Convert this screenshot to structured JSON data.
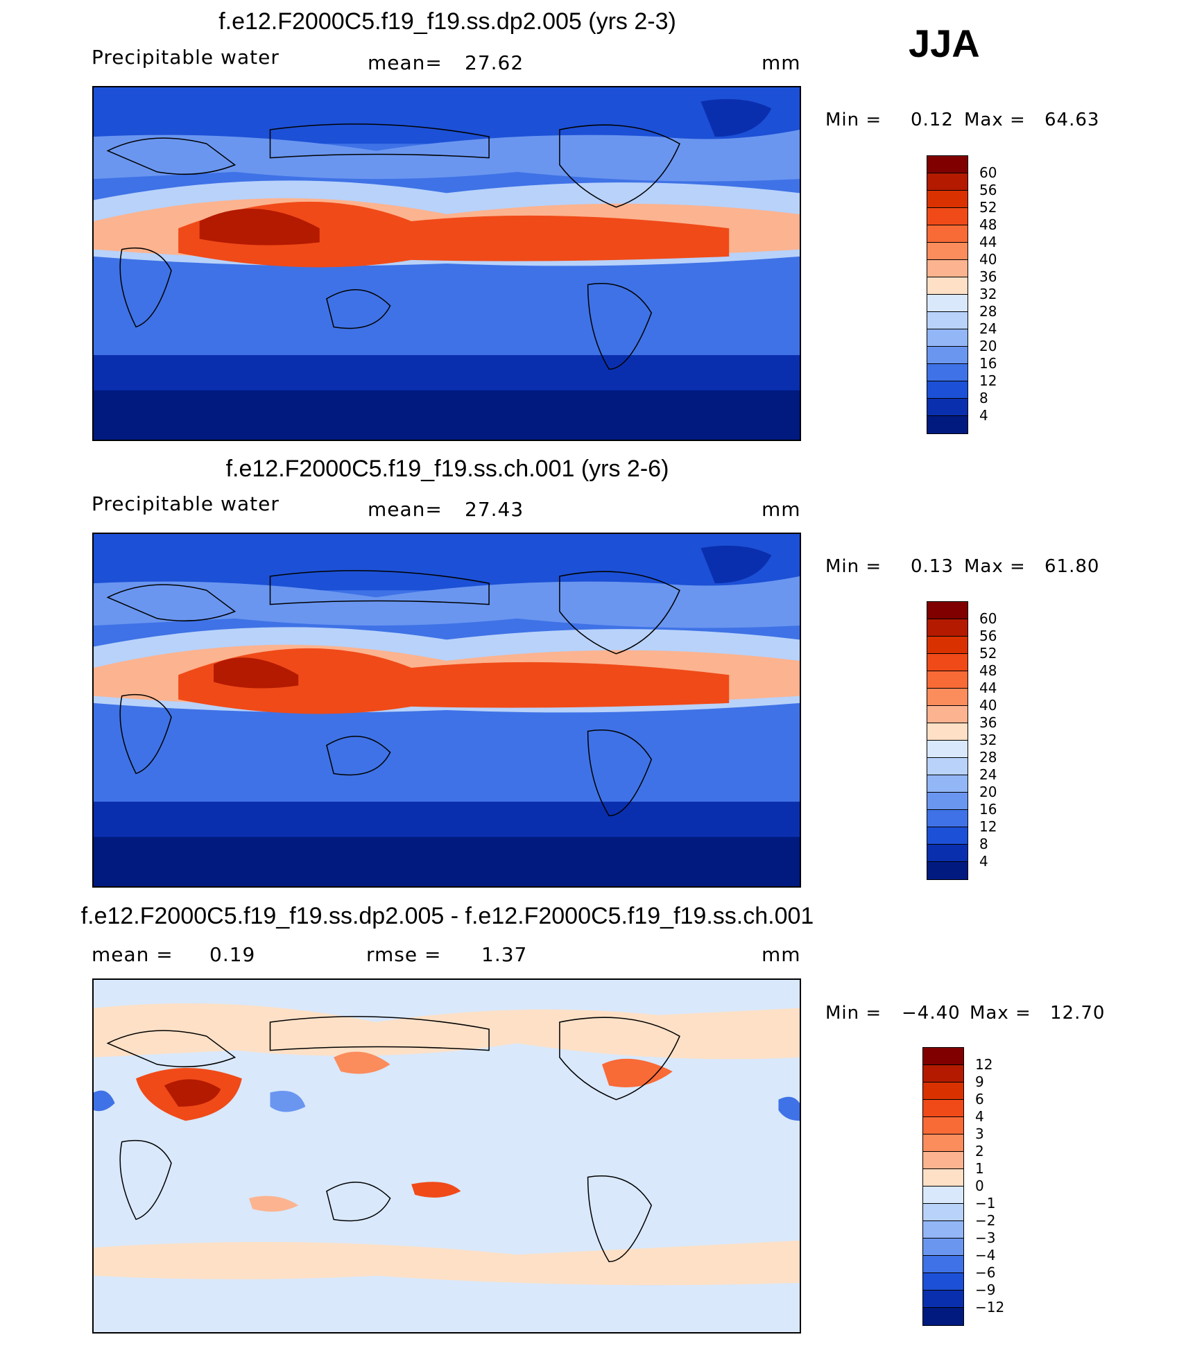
{
  "season": "JJA",
  "panels": [
    {
      "title": "f.e12.F2000C5.f19_f19.ss.dp2.005 (yrs 2-3)",
      "variable": "Precipitable water",
      "stat_label": "mean=",
      "stat_value": "27.62",
      "units": "mm",
      "min_label": "Min =",
      "min_value": "0.12",
      "max_label": "Max =",
      "max_value": "64.63",
      "colorbar_ticks": [
        "60",
        "56",
        "52",
        "48",
        "44",
        "40",
        "36",
        "32",
        "28",
        "24",
        "20",
        "16",
        "12",
        "8",
        "4"
      ],
      "colorbar_colors": [
        "#800000",
        "#b31a00",
        "#d93200",
        "#f04a18",
        "#f86a36",
        "#fb8c5c",
        "#fcb38f",
        "#fde0c6",
        "#d9e8fb",
        "#b8d2fa",
        "#92b6f6",
        "#6a96f0",
        "#3f72e6",
        "#1c50d6",
        "#0a2fae",
        "#001a80"
      ]
    },
    {
      "title": "f.e12.F2000C5.f19_f19.ss.ch.001 (yrs 2-6)",
      "variable": "Precipitable water",
      "stat_label": "mean=",
      "stat_value": "27.43",
      "units": "mm",
      "min_label": "Min =",
      "min_value": "0.13",
      "max_label": "Max =",
      "max_value": "61.80",
      "colorbar_ticks": [
        "60",
        "56",
        "52",
        "48",
        "44",
        "40",
        "36",
        "32",
        "28",
        "24",
        "20",
        "16",
        "12",
        "8",
        "4"
      ],
      "colorbar_colors": [
        "#800000",
        "#b31a00",
        "#d93200",
        "#f04a18",
        "#f86a36",
        "#fb8c5c",
        "#fcb38f",
        "#fde0c6",
        "#d9e8fb",
        "#b8d2fa",
        "#92b6f6",
        "#6a96f0",
        "#3f72e6",
        "#1c50d6",
        "#0a2fae",
        "#001a80"
      ]
    },
    {
      "title": "f.e12.F2000C5.f19_f19.ss.dp2.005 - f.e12.F2000C5.f19_f19.ss.ch.001",
      "variable": "",
      "stat_label": "mean =",
      "stat_value": "0.19",
      "rmse_label": "rmse =",
      "rmse_value": "1.37",
      "units": "mm",
      "min_label": "Min =",
      "min_value": "−4.40",
      "max_label": "Max =",
      "max_value": "12.70",
      "colorbar_ticks": [
        "12",
        "9",
        "6",
        "4",
        "3",
        "2",
        "1",
        "0",
        "−1",
        "−2",
        "−3",
        "−4",
        "−6",
        "−9",
        "−12"
      ],
      "colorbar_colors": [
        "#800000",
        "#b31a00",
        "#d93200",
        "#f04a18",
        "#f86a36",
        "#fb8c5c",
        "#fcb38f",
        "#fde0c6",
        "#d9e8fb",
        "#b8d2fa",
        "#92b6f6",
        "#6a96f0",
        "#3f72e6",
        "#1c50d6",
        "#0a2fae",
        "#001a80"
      ]
    }
  ]
}
